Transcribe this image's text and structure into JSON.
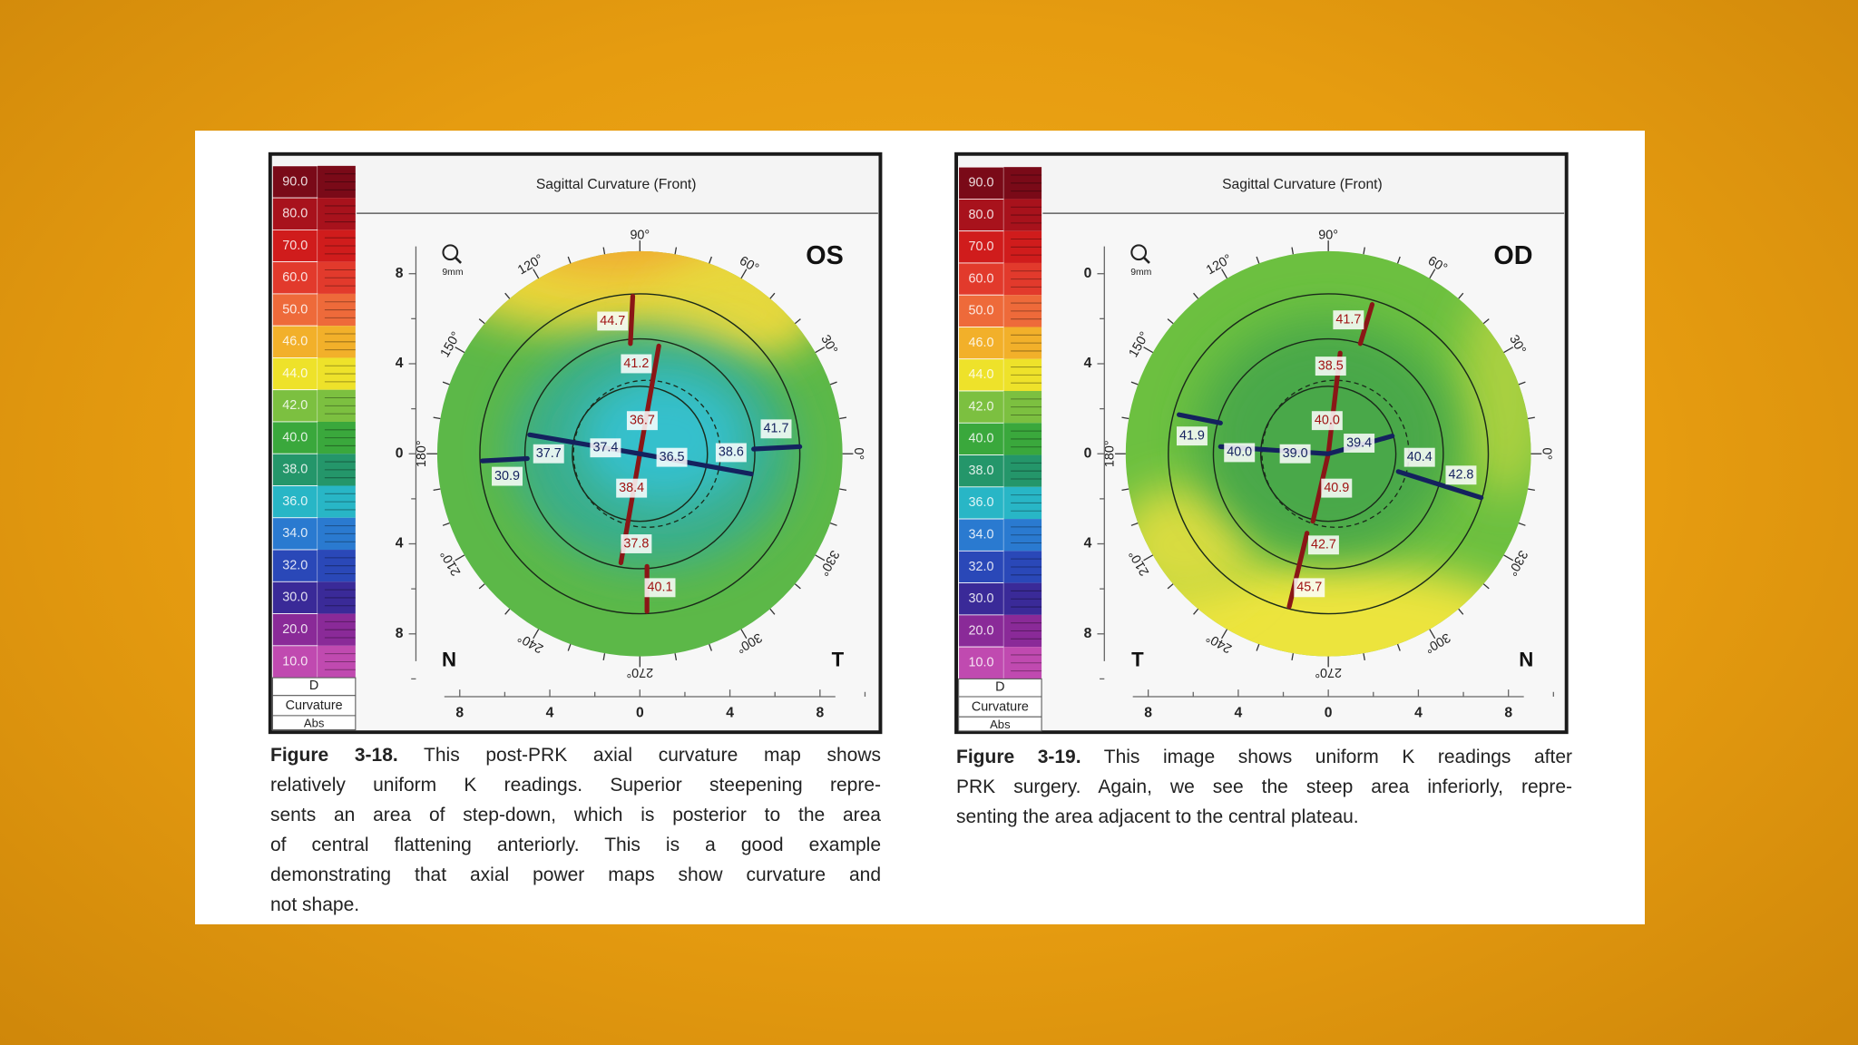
{
  "figures": [
    {
      "panel_title": "Sagittal Curvature (Front)",
      "eye": "OS",
      "magnifier_label": "9mm",
      "scale": {
        "labels": [
          "90.0",
          "80.0",
          "70.0",
          "60.0",
          "50.0",
          "46.0",
          "44.0",
          "42.0",
          "40.0",
          "38.0",
          "36.0",
          "34.0",
          "32.0",
          "30.0",
          "20.0",
          "10.0"
        ],
        "unit": "D",
        "type": "Curvature",
        "mode": "Abs"
      },
      "y_axis_labels": [
        "8",
        "4",
        "0",
        "4",
        "8"
      ],
      "x_axis_labels": [
        "8",
        "4",
        "0",
        "4",
        "8"
      ],
      "angle_labels": [
        "90°",
        "60°",
        "30°",
        "0°",
        "330°",
        "300°",
        "270°",
        "240°",
        "210°",
        "180°",
        "150°",
        "120°"
      ],
      "left_corner": "N",
      "right_corner": "T",
      "readings": [
        "44.7",
        "41.2",
        "36.7",
        "37.4",
        "37.7",
        "30.9",
        "36.5",
        "38.6",
        "41.7",
        "38.4",
        "37.8",
        "40.1"
      ],
      "caption": {
        "label": "Figure 3-18.",
        "lines": [
          "This post-PRK axial curvature map shows",
          "relatively uniform K readings. Superior steepening repre-",
          "sents an area of step-down, which is posterior to the area",
          "of central flattening anteriorly. This is a good example",
          "demonstrating that axial power maps show curvature and",
          "not shape."
        ]
      }
    },
    {
      "panel_title": "Sagittal Curvature (Front)",
      "eye": "OD",
      "magnifier_label": "9mm",
      "scale": {
        "labels": [
          "90.0",
          "80.0",
          "70.0",
          "60.0",
          "50.0",
          "46.0",
          "44.0",
          "42.0",
          "40.0",
          "38.0",
          "36.0",
          "34.0",
          "32.0",
          "30.0",
          "20.0",
          "10.0"
        ],
        "unit": "D",
        "type": "Curvature",
        "mode": "Abs"
      },
      "y_axis_labels": [
        "0",
        "4",
        "0",
        "4",
        "8"
      ],
      "x_axis_labels": [
        "8",
        "4",
        "0",
        "4",
        "8"
      ],
      "angle_labels": [
        "90°",
        "60°",
        "30°",
        "0°",
        "330°",
        "300°",
        "270°",
        "240°",
        "210°",
        "180°",
        "150°",
        "120°"
      ],
      "left_corner": "T",
      "right_corner": "N",
      "readings": [
        "41.7",
        "38.5",
        "40.0",
        "41.9",
        "40.0",
        "39.0",
        "39.4",
        "40.4",
        "42.8",
        "40.9",
        "42.7",
        "45.7"
      ],
      "caption": {
        "label": "Figure 3-19.",
        "lines": [
          "This image shows uniform K readings after",
          "PRK surgery. Again, we see the steep area inferiorly, repre-",
          "senting the area adjacent to the central plateau."
        ]
      }
    }
  ]
}
